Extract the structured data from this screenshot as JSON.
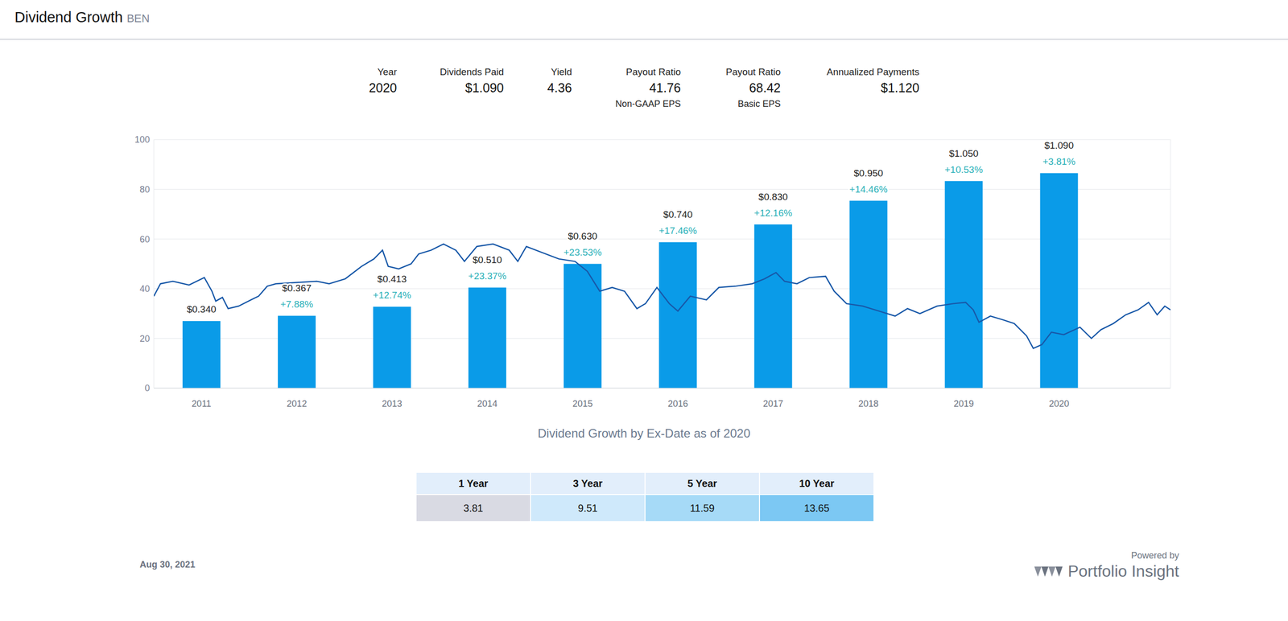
{
  "chart_data": {
    "type": "bar",
    "title": "Dividend Growth",
    "subtitle": "BEN",
    "header": [
      {
        "label": "Year",
        "value": "2020"
      },
      {
        "label": "Dividends Paid",
        "value": "$1.090"
      },
      {
        "label": "Yield",
        "value": "4.36"
      },
      {
        "label": "Payout Ratio",
        "value": "41.76",
        "note": "Non-GAAP EPS"
      },
      {
        "label": "Payout Ratio",
        "value": "68.42",
        "note": "Basic EPS"
      },
      {
        "label": "Annualized Payments",
        "value": "$1.120"
      }
    ],
    "x": [
      2011,
      2012,
      2013,
      2014,
      2015,
      2016,
      2017,
      2018,
      2019,
      2020
    ],
    "xlim": [
      2010.5,
      2021.17
    ],
    "xticks": [
      2011,
      2012,
      2013,
      2014,
      2015,
      2016,
      2017,
      2018,
      2019,
      2020
    ],
    "ylim": [
      0,
      100
    ],
    "yticks": [
      0,
      20,
      40,
      60,
      80,
      100
    ],
    "y2lim": [
      0,
      1.26
    ],
    "y2ticks": [],
    "grid": true,
    "data_labels": true,
    "xlabel": "Dividend Growth by Ex-Date as of 2020",
    "series": [
      {
        "type": "bar",
        "color": "#0a9be8",
        "axis": "y2",
        "values": [
          0.34,
          0.367,
          0.413,
          0.51,
          0.63,
          0.74,
          0.83,
          0.95,
          1.05,
          1.09
        ],
        "value_labels": [
          "$0.340",
          "$0.367",
          "$0.413",
          "$0.510",
          "$0.630",
          "$0.740",
          "$0.830",
          "$0.950",
          "$1.050",
          "$1.090"
        ],
        "growth_labels": [
          null,
          "+7.88%",
          "+12.74%",
          "+23.37%",
          "+23.53%",
          "+17.46%",
          "+12.16%",
          "+14.46%",
          "+10.53%",
          "+3.81%"
        ]
      },
      {
        "type": "line",
        "color": "#1858a8",
        "x": [
          2010.5,
          2010.57,
          2010.7,
          2010.87,
          2011.03,
          2011.11,
          2011.15,
          2011.22,
          2011.28,
          2011.39,
          2011.52,
          2011.6,
          2011.69,
          2011.78,
          2012.21,
          2012.34,
          2012.51,
          2012.68,
          2012.81,
          2012.9,
          2012.96,
          2013.07,
          2013.2,
          2013.28,
          2013.41,
          2013.54,
          2013.67,
          2013.76,
          2013.89,
          2014.06,
          2014.23,
          2014.32,
          2014.41,
          2014.58,
          2014.75,
          2014.92,
          2015.05,
          2015.18,
          2015.31,
          2015.44,
          2015.57,
          2015.66,
          2015.78,
          2015.91,
          2016.0,
          2016.13,
          2016.3,
          2016.43,
          2016.6,
          2016.78,
          2016.91,
          2017.03,
          2017.12,
          2017.25,
          2017.38,
          2017.55,
          2017.64,
          2017.77,
          2017.94,
          2018.11,
          2018.28,
          2018.41,
          2018.54,
          2018.72,
          2018.89,
          2019.02,
          2019.1,
          2019.16,
          2019.28,
          2019.41,
          2019.53,
          2019.66,
          2019.73,
          2019.82,
          2019.92,
          2020.05,
          2020.22,
          2020.34,
          2020.44,
          2020.57,
          2020.7,
          2020.83,
          2020.94,
          2021.03,
          2021.11,
          2021.17
        ],
        "values": [
          37,
          42,
          43,
          41.5,
          44.5,
          39,
          35,
          36.5,
          32,
          33,
          35.5,
          37,
          41,
          42,
          43,
          42,
          44,
          49,
          52,
          55.5,
          49,
          48,
          50,
          54,
          55.5,
          58,
          55.5,
          51,
          57,
          58,
          55.5,
          51,
          57,
          54.5,
          52,
          51,
          47,
          39,
          40.5,
          39,
          32,
          34,
          40.5,
          34,
          31,
          37,
          35.5,
          40.5,
          41,
          42,
          44,
          46.5,
          43,
          42,
          44.5,
          45,
          39,
          34,
          33,
          31,
          29,
          32,
          30,
          33,
          34,
          34.5,
          31.5,
          26.5,
          29,
          27.5,
          26,
          21,
          16,
          17.5,
          22.5,
          21.5,
          24.5,
          20,
          23.5,
          26,
          29.5,
          31.5,
          34.5,
          29.5,
          33,
          31.5
        ]
      }
    ],
    "growth_table": {
      "columns": [
        "1 Year",
        "3 Year",
        "5 Year",
        "10 Year"
      ],
      "values": [
        3.81,
        9.51,
        11.59,
        13.65
      ]
    },
    "date": "Aug 30, 2021",
    "credit": {
      "prefix": "Powered by",
      "name": "Portfolio Insight"
    }
  }
}
